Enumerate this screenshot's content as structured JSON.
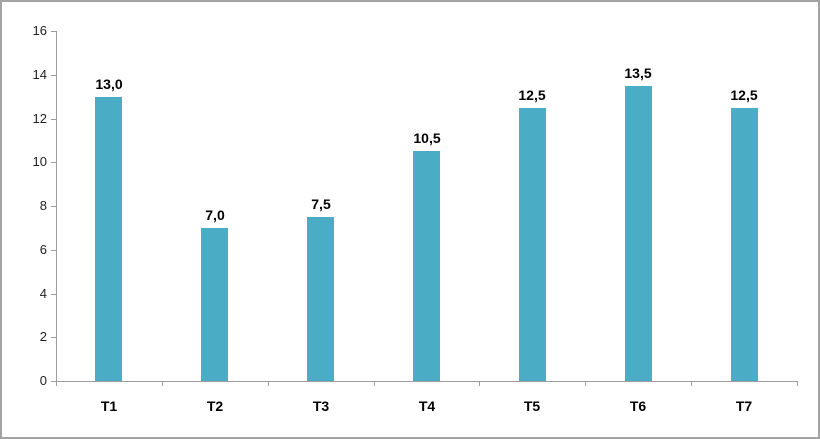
{
  "frame": {
    "background_color": "#ffffff",
    "border_color": "#a3a3a3"
  },
  "chart_data": {
    "type": "bar",
    "title": "",
    "xlabel": "",
    "ylabel": "",
    "categories": [
      "T1",
      "T2",
      "T3",
      "T4",
      "T5",
      "T6",
      "T7"
    ],
    "values": [
      13.0,
      7.0,
      7.5,
      10.5,
      12.5,
      13.5,
      12.5
    ],
    "value_labels": [
      "13,0",
      "7,0",
      "7,5",
      "10,5",
      "12,5",
      "13,5",
      "12,5"
    ],
    "ylim": [
      0,
      16
    ],
    "ytick_step": 2,
    "ytick_labels": [
      "0",
      "2",
      "4",
      "6",
      "8",
      "10",
      "12",
      "14",
      "16"
    ],
    "grid": false,
    "legend": "none",
    "bar_color": "#4BACC6",
    "axis_color": "#9d9d9d",
    "tick_label_color": "#1f1f1f",
    "data_label_color": "#000000",
    "decimal_separator": ","
  }
}
